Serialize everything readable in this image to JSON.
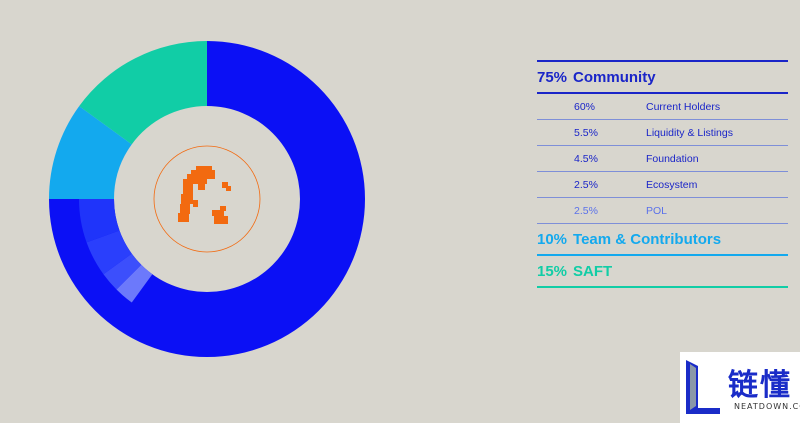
{
  "chart_data": {
    "type": "pie",
    "subtype": "donut",
    "categories": [
      {
        "label": "Community",
        "value": 75,
        "value_label": "75%",
        "color": "#0b10f5"
      },
      {
        "label": "Team & Contributors",
        "value": 10,
        "value_label": "10%",
        "color": "#13a9ee"
      },
      {
        "label": "SAFT",
        "value": 15,
        "value_label": "15%",
        "color": "#11cda6"
      }
    ],
    "breakdown": {
      "parent": "Community",
      "items": [
        {
          "label": "Current Holders",
          "value": 60,
          "value_label": "60%",
          "color": "#0b10f5"
        },
        {
          "label": "Liquidity & Listings",
          "value": 5.5,
          "value_label": "5.5%",
          "color": "#0b10f5"
        },
        {
          "label": "Foundation",
          "value": 4.5,
          "value_label": "4.5%",
          "color": "#0b10f5"
        },
        {
          "label": "Ecosystem",
          "value": 2.5,
          "value_label": "2.5%",
          "color": "#0b10f5"
        },
        {
          "label": "POL",
          "value": 2.5,
          "value_label": "2.5%",
          "color": "#5b72ea"
        }
      ]
    },
    "inner_wedges": [
      {
        "value": 2.5,
        "color": "#6c79fb"
      },
      {
        "value": 2.5,
        "color": "#3c4ffc"
      },
      {
        "value": 4.5,
        "color": "#2a3ffc"
      },
      {
        "value": 5.5,
        "color": "#1f34fa"
      }
    ],
    "legend_placement": "right"
  },
  "colors": {
    "background": "#d8d6ce",
    "community": "#0b10f5",
    "team": "#13a9ee",
    "saft": "#11cda6",
    "sub_text": "#1a25c8",
    "pol_text": "#5b72ea",
    "center_icon": "#f26a10"
  },
  "center_icon": "orange-pixel-mascot-icon",
  "watermark": {
    "chinese": "链懂",
    "english": "NEATDOWN.COM"
  }
}
